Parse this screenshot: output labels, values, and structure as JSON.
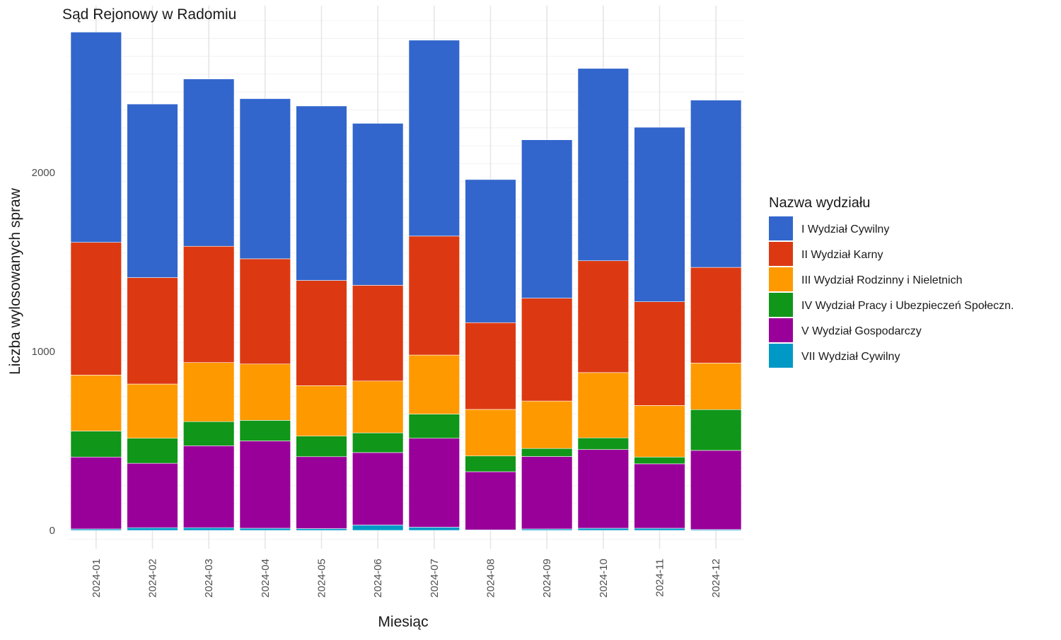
{
  "chart_data": {
    "type": "bar",
    "stacked": true,
    "title": "Sąd Rejonowy w Radomiu",
    "xlabel": "Miesiąc",
    "ylabel": "Liczba wylosowanych spraw",
    "ylim": [
      0,
      2900
    ],
    "yticks": [
      0,
      1000,
      2000
    ],
    "grid": true,
    "legend_position": "right",
    "legend_title": "Nazwa wydziału",
    "categories": [
      "2024-01",
      "2024-02",
      "2024-03",
      "2024-04",
      "2024-05",
      "2024-06",
      "2024-07",
      "2024-08",
      "2024-09",
      "2024-10",
      "2024-11",
      "2024-12"
    ],
    "series": [
      {
        "name": "VII Wydział Cywilny",
        "color": "#0099c6",
        "values": [
          8,
          15,
          15,
          12,
          10,
          30,
          18,
          3,
          8,
          12,
          12,
          5
        ]
      },
      {
        "name": "V Wydział Gospodarczy",
        "color": "#990099",
        "values": [
          402,
          360,
          458,
          488,
          402,
          405,
          497,
          325,
          405,
          440,
          360,
          442
        ]
      },
      {
        "name": "IV Wydział Pracy i Ubezpieczeń Społeczn.",
        "color": "#109618",
        "values": [
          145,
          140,
          135,
          115,
          115,
          110,
          135,
          88,
          45,
          65,
          38,
          228
        ]
      },
      {
        "name": "III Wydział Rodzinny i Nieletnich",
        "color": "#ff9900",
        "values": [
          313,
          303,
          330,
          315,
          282,
          290,
          330,
          260,
          265,
          365,
          288,
          260
        ]
      },
      {
        "name": "II Wydział Karny",
        "color": "#dc3912",
        "values": [
          742,
          595,
          650,
          588,
          588,
          535,
          665,
          485,
          575,
          625,
          580,
          535
        ]
      },
      {
        "name": "I Wydział Cywilny",
        "color": "#3366cc",
        "values": [
          1175,
          970,
          935,
          895,
          975,
          905,
          1095,
          800,
          885,
          1075,
          975,
          935
        ]
      }
    ]
  }
}
